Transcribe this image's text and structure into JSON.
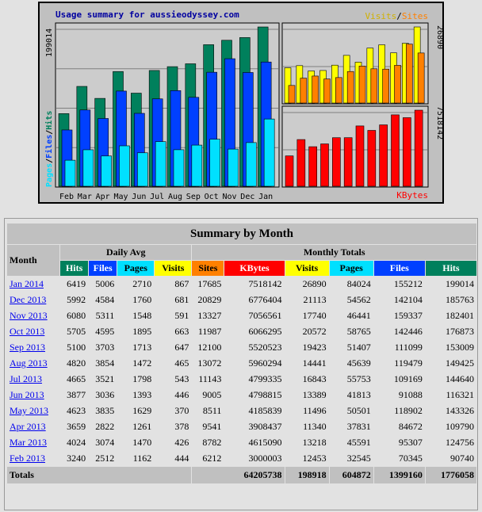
{
  "chart": {
    "title": "Usage summary for aussieodyssey.com",
    "left_legend": [
      "Pages",
      "Files",
      "Hits"
    ],
    "left_max": "199014",
    "visits_label": "Visits",
    "sites_label": "Sites",
    "slash": "/",
    "right_top_max": "26890",
    "right_bottom_max": "7518142",
    "kbytes_label": "KBytes"
  },
  "colors": {
    "hits": "#00805c",
    "files": "#0040ff",
    "pages": "#00e0ff",
    "visits": "#ffff00",
    "sites": "#ff8000",
    "kbytes": "#ff0000",
    "title": "#0000a0"
  },
  "chart_data": {
    "type": "bar",
    "categories": [
      "Feb",
      "Mar",
      "Apr",
      "May",
      "Jun",
      "Jul",
      "Aug",
      "Sep",
      "Oct",
      "Nov",
      "Dec",
      "Jan"
    ],
    "series": [
      {
        "name": "Hits",
        "values": [
          90740,
          124756,
          109790,
          143326,
          116321,
          144640,
          149425,
          153009,
          176873,
          182401,
          185763,
          199014
        ]
      },
      {
        "name": "Files",
        "values": [
          70345,
          95307,
          84672,
          118902,
          91088,
          109169,
          119479,
          111099,
          142446,
          159337,
          142104,
          155212
        ]
      },
      {
        "name": "Pages",
        "values": [
          32545,
          45591,
          37831,
          50501,
          41813,
          55753,
          45639,
          51407,
          58765,
          46441,
          54562,
          84024
        ]
      },
      {
        "name": "Visits",
        "values": [
          12453,
          13218,
          11340,
          11496,
          13389,
          16843,
          14441,
          19423,
          20572,
          17740,
          21113,
          26890
        ]
      },
      {
        "name": "Sites",
        "values": [
          6212,
          8782,
          9541,
          8511,
          9005,
          11143,
          13072,
          12100,
          11987,
          13327,
          20829,
          17685
        ]
      },
      {
        "name": "KBytes",
        "values": [
          3000003,
          4615090,
          3908437,
          4185839,
          4798815,
          4799335,
          5960294,
          5520523,
          6066295,
          7056561,
          6776404,
          7518142
        ]
      }
    ]
  },
  "table": {
    "title": "Summary by Month",
    "month_header": "Month",
    "daily_avg_header": "Daily Avg",
    "monthly_totals_header": "Monthly Totals",
    "daily_cols": [
      "Hits",
      "Files",
      "Pages",
      "Visits"
    ],
    "monthly_cols": [
      "Sites",
      "KBytes",
      "Visits",
      "Pages",
      "Files",
      "Hits"
    ],
    "rows": [
      {
        "month": "Jan 2014",
        "cells": [
          "6419",
          "5006",
          "2710",
          "867",
          "17685",
          "7518142",
          "26890",
          "84024",
          "155212",
          "199014"
        ]
      },
      {
        "month": "Dec 2013",
        "cells": [
          "5992",
          "4584",
          "1760",
          "681",
          "20829",
          "6776404",
          "21113",
          "54562",
          "142104",
          "185763"
        ]
      },
      {
        "month": "Nov 2013",
        "cells": [
          "6080",
          "5311",
          "1548",
          "591",
          "13327",
          "7056561",
          "17740",
          "46441",
          "159337",
          "182401"
        ]
      },
      {
        "month": "Oct 2013",
        "cells": [
          "5705",
          "4595",
          "1895",
          "663",
          "11987",
          "6066295",
          "20572",
          "58765",
          "142446",
          "176873"
        ]
      },
      {
        "month": "Sep 2013",
        "cells": [
          "5100",
          "3703",
          "1713",
          "647",
          "12100",
          "5520523",
          "19423",
          "51407",
          "111099",
          "153009"
        ]
      },
      {
        "month": "Aug 2013",
        "cells": [
          "4820",
          "3854",
          "1472",
          "465",
          "13072",
          "5960294",
          "14441",
          "45639",
          "119479",
          "149425"
        ]
      },
      {
        "month": "Jul 2013",
        "cells": [
          "4665",
          "3521",
          "1798",
          "543",
          "11143",
          "4799335",
          "16843",
          "55753",
          "109169",
          "144640"
        ]
      },
      {
        "month": "Jun 2013",
        "cells": [
          "3877",
          "3036",
          "1393",
          "446",
          "9005",
          "4798815",
          "13389",
          "41813",
          "91088",
          "116321"
        ]
      },
      {
        "month": "May 2013",
        "cells": [
          "4623",
          "3835",
          "1629",
          "370",
          "8511",
          "4185839",
          "11496",
          "50501",
          "118902",
          "143326"
        ]
      },
      {
        "month": "Apr 2013",
        "cells": [
          "3659",
          "2822",
          "1261",
          "378",
          "9541",
          "3908437",
          "11340",
          "37831",
          "84672",
          "109790"
        ]
      },
      {
        "month": "Mar 2013",
        "cells": [
          "4024",
          "3074",
          "1470",
          "426",
          "8782",
          "4615090",
          "13218",
          "45591",
          "95307",
          "124756"
        ]
      },
      {
        "month": "Feb 2013",
        "cells": [
          "3240",
          "2512",
          "1162",
          "444",
          "6212",
          "3000003",
          "12453",
          "32545",
          "70345",
          "90740"
        ]
      }
    ],
    "totals": {
      "label": "Totals",
      "cells": [
        "64205738",
        "198918",
        "604872",
        "1399160",
        "1776058"
      ]
    }
  }
}
